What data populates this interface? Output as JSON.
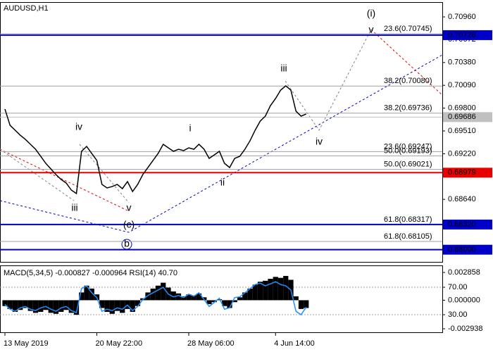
{
  "chart_data": [
    {
      "type": "line",
      "title": "AUDUSD,H1",
      "color": "#000000",
      "categories": [
        "13 May 2019",
        null,
        null,
        null,
        null,
        null,
        null,
        null,
        null,
        null,
        null,
        null,
        null,
        null,
        null,
        null,
        null,
        null,
        "20 May 22:00",
        null,
        null,
        null,
        null,
        null,
        null,
        null,
        null,
        null,
        null,
        null,
        null,
        null,
        null,
        null,
        null,
        null,
        "28 May 06:00",
        null,
        null,
        null,
        null,
        null,
        null,
        null,
        null,
        null,
        null,
        null,
        null,
        null,
        null,
        null,
        null,
        "4 Jun 14:00",
        null,
        null,
        null,
        null,
        null,
        null
      ],
      "values": [
        0.69788,
        0.69582,
        0.69519,
        0.69456,
        0.69403,
        0.6934,
        0.69277,
        0.69188,
        0.69098,
        0.69027,
        0.68955,
        0.68893,
        0.68848,
        0.68758,
        0.68714,
        0.69251,
        0.69313,
        0.69224,
        0.69134,
        0.6883,
        0.68785,
        0.68803,
        0.6883,
        0.68776,
        0.68866,
        0.6874,
        0.6883,
        0.68955,
        0.69045,
        0.69134,
        0.69224,
        0.6934,
        0.69295,
        0.69251,
        0.69277,
        0.6926,
        0.69295,
        0.69277,
        0.6934,
        0.69277,
        0.69161,
        0.69206,
        0.69251,
        0.69098,
        0.69045,
        0.69161,
        0.69188,
        0.69277,
        0.69385,
        0.69519,
        0.69635,
        0.69698,
        0.69832,
        0.69922,
        0.70029,
        0.70083,
        0.70029,
        0.69761,
        0.69698,
        0.69725
      ],
      "ylim": [
        0.67845,
        0.71139
      ],
      "yticks": [
        {
          "value": 0.7096,
          "label": "0.70960"
        },
        {
          "value": 0.70672,
          "label": "0.70672"
        },
        {
          "value": 0.7038,
          "label": "0.70380"
        },
        {
          "value": 0.7009,
          "label": "0.70090"
        },
        {
          "value": 0.698,
          "label": "0.69800"
        },
        {
          "value": 0.6951,
          "label": "0.69510"
        },
        {
          "value": 0.6922,
          "label": "0.69220"
        },
        {
          "value": 0.6864,
          "label": "0.68640"
        }
      ],
      "levels": [
        {
          "value": 0.70728,
          "color": "#0000c8"
        },
        {
          "value": 0.69686,
          "color": "#c0c0c0"
        },
        {
          "value": 0.68979,
          "color": "#e60000"
        },
        {
          "value": 0.6832,
          "label": "0.68320",
          "color": "#0000c8"
        },
        {
          "value": 0.68,
          "label": "0.68000",
          "color": "#0000c8"
        }
      ],
      "fib_levels": [
        {
          "label": "23.6(0.70745)",
          "value": 0.70745
        },
        {
          "label": "38.2(0.70080)",
          "value": 0.7008
        },
        {
          "label": "38.2(0.69736)",
          "value": 0.69736
        },
        {
          "label": "23.6(0.69247)",
          "value": 0.69247
        },
        {
          "label": "50.0(0.69193)",
          "value": 0.69193
        },
        {
          "label": "50.0(0.69021)",
          "value": 0.69021
        },
        {
          "label": "61.8(0.68317)",
          "value": 0.68317
        },
        {
          "label": "61.8(0.68105)",
          "value": 0.68105
        }
      ],
      "wave_labels": [
        {
          "text": "(i)",
          "color": "#e60000"
        },
        {
          "text": "v",
          "color": "#808080"
        },
        {
          "text": "iii",
          "color": "#808080"
        },
        {
          "text": "iv",
          "color": "#808080"
        },
        {
          "text": "i",
          "color": "#808080"
        },
        {
          "text": "ii",
          "color": "#808080"
        },
        {
          "text": "iv",
          "color": "#808080"
        },
        {
          "text": "iii",
          "color": "#808080"
        },
        {
          "text": "v",
          "color": "#808080"
        },
        {
          "text": "(c)",
          "color": "#e60000"
        },
        {
          "text": "b",
          "color": "#0000c8"
        }
      ]
    },
    {
      "type": "macd_rsi",
      "title": "MACD(5,34,5) -0.000827 -0.000964 RSI(14) 40.70",
      "color": "#000000",
      "rsi_color": "#1e90ff",
      "histogram": [
        -0.0006,
        -0.0009,
        -0.0012,
        -0.001,
        -0.0008,
        -0.0011,
        -0.0013,
        -0.0012,
        -0.001,
        -0.0013,
        -0.0014,
        -0.0012,
        -0.001,
        -0.0013,
        -0.0015,
        0.0008,
        0.0015,
        0.0012,
        0.0006,
        -0.0008,
        -0.0012,
        -0.0014,
        -0.0011,
        -0.0013,
        -0.0009,
        -0.0012,
        -0.0006,
        0.0002,
        0.0008,
        0.0012,
        0.0015,
        0.0018,
        0.0013,
        0.0009,
        0.0007,
        0.0004,
        0.0006,
        0.0005,
        0.0007,
        0.0003,
        -0.0004,
        -0.0002,
        0.0001,
        -0.0006,
        -0.0008,
        -0.0002,
        0.0003,
        0.0008,
        0.0012,
        0.0016,
        0.0019,
        0.002,
        0.0022,
        0.0024,
        0.0023,
        0.0025,
        0.0021,
        0.0004,
        -0.0009,
        -0.0008
      ],
      "rsi": [
        45,
        38,
        35,
        40,
        42,
        38,
        36,
        40,
        42,
        38,
        35,
        40,
        42,
        36,
        33,
        68,
        72,
        62,
        55,
        35,
        38,
        36,
        40,
        38,
        44,
        36,
        42,
        52,
        58,
        62,
        66,
        70,
        60,
        56,
        58,
        55,
        60,
        57,
        62,
        52,
        42,
        48,
        54,
        38,
        40,
        55,
        56,
        62,
        68,
        74,
        76,
        72,
        75,
        78,
        74,
        72,
        66,
        35,
        30,
        41
      ],
      "ylim": [
        -0.0033,
        0.00351
      ],
      "yticks": [
        {
          "value": 0.002858,
          "label": "0.002858"
        },
        {
          "value": 0,
          "label": "0.000000"
        },
        {
          "value": -0.002938,
          "label": "-0.002938"
        }
      ],
      "rsi_ylim": [
        4.4,
        100.8
      ],
      "rsi_yticks": [
        {
          "value": 70,
          "label": "70.00"
        },
        {
          "value": 30,
          "label": "30.00"
        }
      ]
    }
  ]
}
